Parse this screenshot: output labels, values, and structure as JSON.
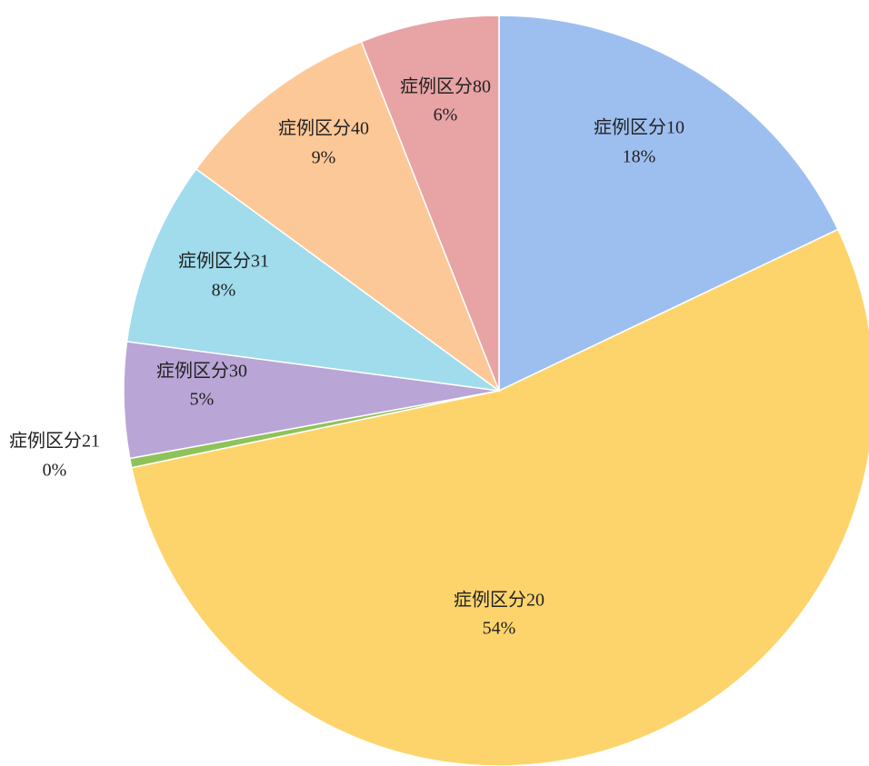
{
  "chart_data": {
    "type": "pie",
    "categories": [
      "症例区分10",
      "症例区分20",
      "症例区分21",
      "症例区分30",
      "症例区分31",
      "症例区分40",
      "症例区分80"
    ],
    "values": [
      18,
      54,
      0.4,
      5,
      8,
      9,
      6
    ],
    "value_labels": [
      "18%",
      "54%",
      "0%",
      "5%",
      "8%",
      "9%",
      "6%"
    ],
    "colors": [
      "#9dbff0",
      "#fdd46c",
      "#8fc35a",
      "#b9a5d6",
      "#a0dcec",
      "#fdc898",
      "#e8a3a4"
    ]
  }
}
